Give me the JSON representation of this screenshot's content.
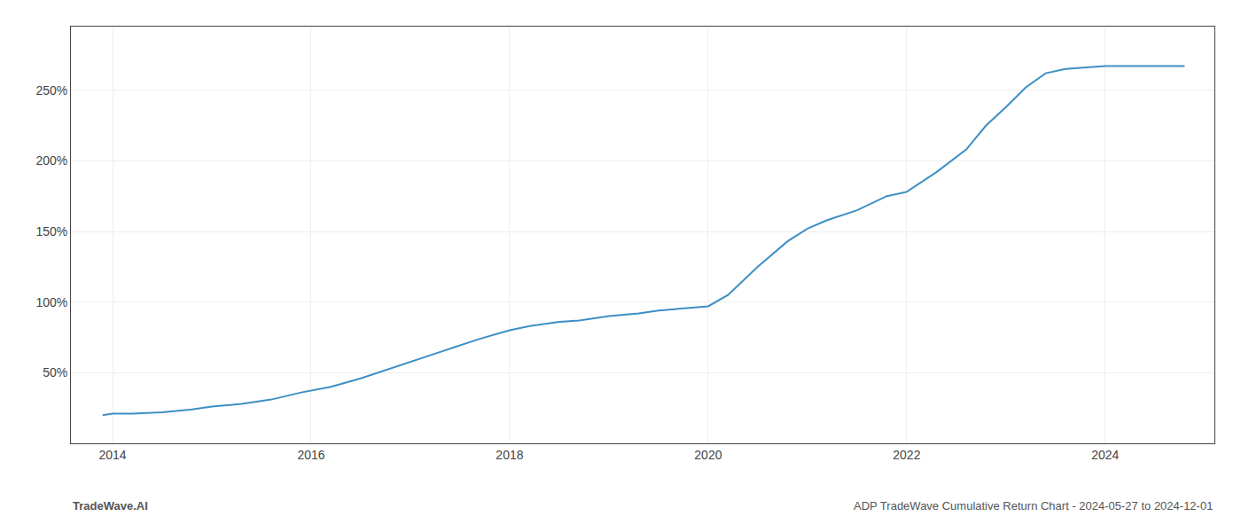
{
  "chart_data": {
    "type": "line",
    "x": [
      2013.9,
      2014.0,
      2014.2,
      2014.5,
      2014.8,
      2015.0,
      2015.3,
      2015.6,
      2015.9,
      2016.2,
      2016.5,
      2016.8,
      2017.1,
      2017.4,
      2017.7,
      2018.0,
      2018.2,
      2018.5,
      2018.7,
      2019.0,
      2019.3,
      2019.5,
      2019.8,
      2020.0,
      2020.2,
      2020.5,
      2020.8,
      2021.0,
      2021.2,
      2021.5,
      2021.8,
      2022.0,
      2022.3,
      2022.6,
      2022.8,
      2023.0,
      2023.2,
      2023.4,
      2023.6,
      2023.8,
      2024.0,
      2024.3,
      2024.8
    ],
    "values": [
      20,
      21,
      21,
      22,
      24,
      26,
      28,
      31,
      36,
      40,
      46,
      53,
      60,
      67,
      74,
      80,
      83,
      86,
      87,
      90,
      92,
      94,
      96,
      97,
      105,
      125,
      143,
      152,
      158,
      165,
      175,
      178,
      192,
      208,
      225,
      238,
      252,
      262,
      265,
      266,
      267,
      267,
      267
    ],
    "color": "#3d8fc4",
    "xlim": [
      2013.58,
      2025.1
    ],
    "xticks": [
      2014,
      2016,
      2018,
      2020,
      2022,
      2024
    ],
    "ylim": [
      0,
      295
    ],
    "yticks": [
      {
        "value": 50,
        "label": "50%"
      },
      {
        "value": 100,
        "label": "100%"
      },
      {
        "value": 150,
        "label": "150%"
      },
      {
        "value": 200,
        "label": "200%"
      },
      {
        "value": 250,
        "label": "250%"
      }
    ],
    "grid": true,
    "annotations": [
      "TradeWave.AI",
      "ADP TradeWave Cumulative Return Chart - 2024-05-27 to 2024-12-01"
    ]
  }
}
